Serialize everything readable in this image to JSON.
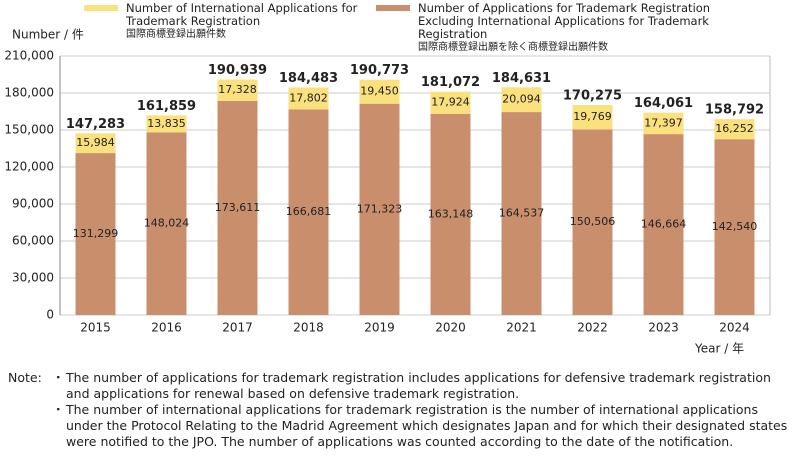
{
  "chart_data": {
    "type": "stacked_bar",
    "y_label": "Number / 件",
    "x_label": "Year / 年",
    "categories": [
      "2015",
      "2016",
      "2017",
      "2018",
      "2019",
      "2020",
      "2021",
      "2022",
      "2023",
      "2024"
    ],
    "series": [
      {
        "name": "Number of Applications for Trademark Registration Excluding International Applications for Trademark Registration",
        "name_ja": "国際商標登録出願を除く商標登録出願件数",
        "color": "#c98f6d",
        "values": [
          131299,
          148024,
          173611,
          166681,
          171323,
          163148,
          164537,
          150506,
          146664,
          142540
        ],
        "value_labels": [
          "131,299",
          "148,024",
          "173,611",
          "166,681",
          "171,323",
          "163,148",
          "164,537",
          "150,506",
          "146,664",
          "142,540"
        ]
      },
      {
        "name": "Number of International Applications for Trademark Registration",
        "name_ja": "国際商標登録出願件数",
        "color": "#fbe07e",
        "values": [
          15984,
          13835,
          17328,
          17802,
          19450,
          17924,
          20094,
          19769,
          17397,
          16252
        ],
        "value_labels": [
          "15,984",
          "13,835",
          "17,328",
          "17,802",
          "19,450",
          "17,924",
          "20,094",
          "19,769",
          "17,397",
          "16,252"
        ]
      }
    ],
    "totals": [
      147283,
      161859,
      190939,
      184483,
      190773,
      181072,
      184631,
      170275,
      164061,
      158792
    ],
    "total_labels": [
      "147,283",
      "161,859",
      "190,939",
      "184,483",
      "190,773",
      "181,072",
      "184,631",
      "170,275",
      "164,061",
      "158,792"
    ],
    "ylim": [
      0,
      210000
    ],
    "yticks": [
      0,
      {
        "value": 30000,
        "label": "30,000"
      },
      {
        "value": 60000,
        "label": "60,000"
      },
      {
        "value": 90000,
        "label": "90,000"
      },
      {
        "value": 120000,
        "label": "120,000"
      },
      {
        "value": 150000,
        "label": "150,000"
      },
      {
        "value": 180000,
        "label": "180,000"
      },
      {
        "value": 210000,
        "label": "210,000"
      }
    ],
    "grid": true
  },
  "notes": {
    "label": "Note:",
    "items": [
      "The number of applications for trademark registration includes applications for defensive trademark registration and applications for renewal based on defensive trademark registration.",
      "The number of international applications for trademark registration is the number of international applications under the Protocol Relating to the Madrid Agreement which designates Japan and for which their designated states were notified to the JPO. The number of applications was counted according to the date of the notification."
    ]
  }
}
